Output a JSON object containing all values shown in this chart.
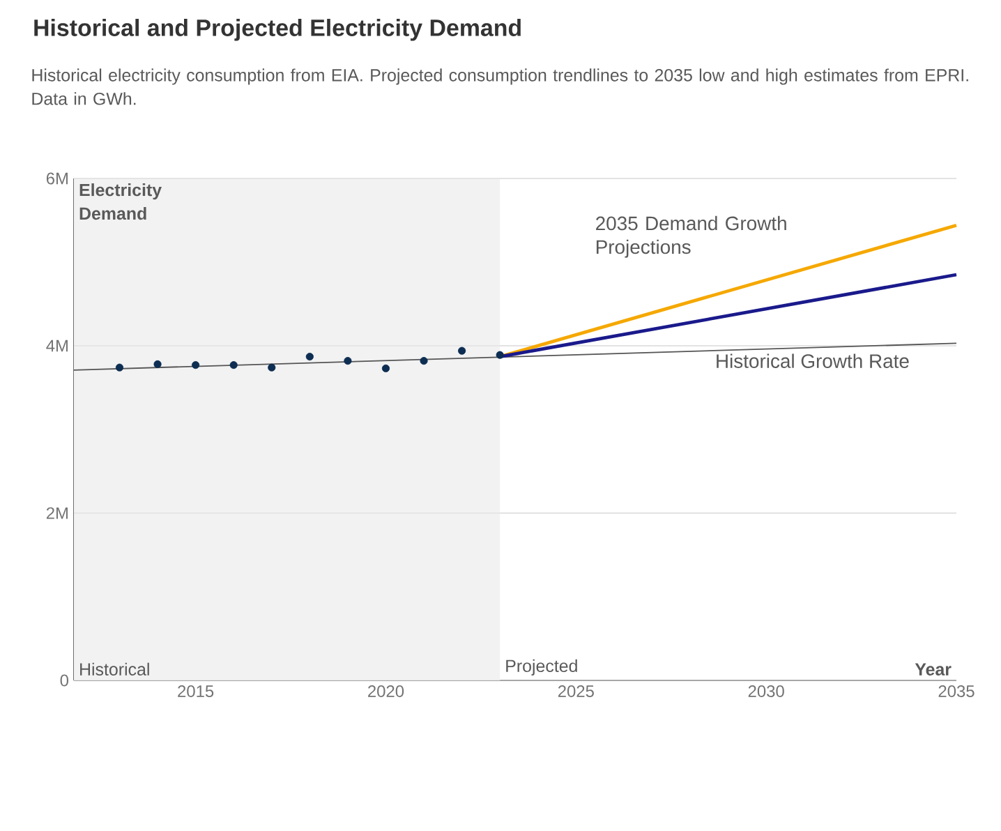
{
  "chart_data": {
    "type": "line",
    "title": "Historical and Projected Electricity Demand",
    "subtitle": "Historical electricity consumption from EIA. Projected consumption trendlines to 2035 low and high estimates from EPRI. Data in GWh.",
    "xlabel": "Year",
    "ylabel": "Electricity Demand",
    "xlim": [
      2011.8,
      2035
    ],
    "ylim": [
      0,
      6
    ],
    "xticks": [
      2015,
      2020,
      2025,
      2030,
      2035
    ],
    "yticks": [
      {
        "value": 0,
        "label": "0"
      },
      {
        "value": 2,
        "label": "2M"
      },
      {
        "value": 4,
        "label": "4M"
      },
      {
        "value": 6,
        "label": "6M"
      }
    ],
    "grid": "y",
    "legend": false,
    "bands": [
      {
        "axis": "x",
        "from": 2011.8,
        "to": 2023,
        "label": "Historical",
        "color": "#f2f2f2"
      }
    ],
    "annotations": [
      "Projected",
      "2035 Demand Growth Projections"
    ],
    "series": [
      {
        "type": "scatter",
        "marker": "circle",
        "color": "#0d2d52",
        "x": [
          2013,
          2014,
          2015,
          2016,
          2017,
          2018,
          2019,
          2020,
          2021,
          2022,
          2023
        ],
        "values": [
          3.74,
          3.78,
          3.77,
          3.77,
          3.74,
          3.87,
          3.82,
          3.73,
          3.82,
          3.94,
          3.89
        ]
      },
      {
        "name": "Historical Growth Rate",
        "color": "#555555",
        "x": [
          2011.8,
          2035
        ],
        "values": [
          3.71,
          4.03
        ]
      },
      {
        "color": "#f5a800",
        "x": [
          2023,
          2035
        ],
        "values": [
          3.87,
          5.44
        ]
      },
      {
        "color": "#1a1a8c",
        "x": [
          2023,
          2035
        ],
        "values": [
          3.87,
          4.85
        ]
      }
    ]
  }
}
